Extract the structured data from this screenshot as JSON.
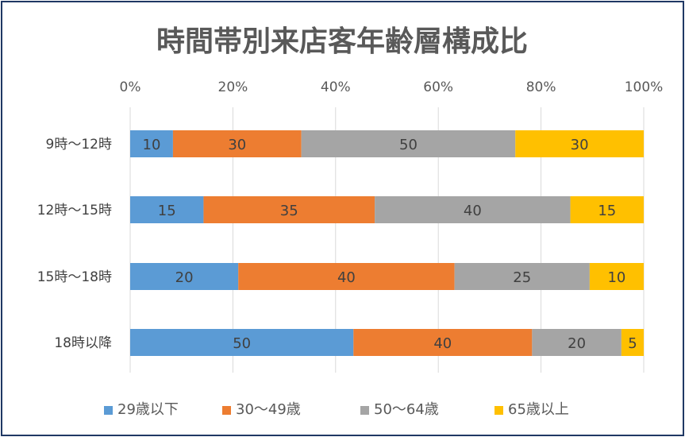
{
  "chart_data": {
    "type": "bar",
    "orientation": "horizontal",
    "stacked": "percent",
    "title": "時間帯別来店客年齢層構成比",
    "categories": [
      "9時〜12時",
      "12時〜15時",
      "15時〜18時",
      "18時以降"
    ],
    "series": [
      {
        "name": "29歳以下",
        "color": "#5b9bd5",
        "values": [
          10,
          15,
          20,
          50
        ]
      },
      {
        "name": "30〜49歳",
        "color": "#ed7d31",
        "values": [
          30,
          35,
          40,
          40
        ]
      },
      {
        "name": "50〜64歳",
        "color": "#a5a5a5",
        "values": [
          50,
          40,
          25,
          20
        ]
      },
      {
        "name": "65歳以上",
        "color": "#ffc000",
        "values": [
          30,
          15,
          10,
          5
        ]
      }
    ],
    "xlim": [
      0,
      100
    ],
    "x_ticks": [
      "0%",
      "20%",
      "40%",
      "60%",
      "80%",
      "100%"
    ],
    "x_axis_position": "top",
    "grid": true,
    "legend_position": "bottom",
    "data_labels": true
  }
}
